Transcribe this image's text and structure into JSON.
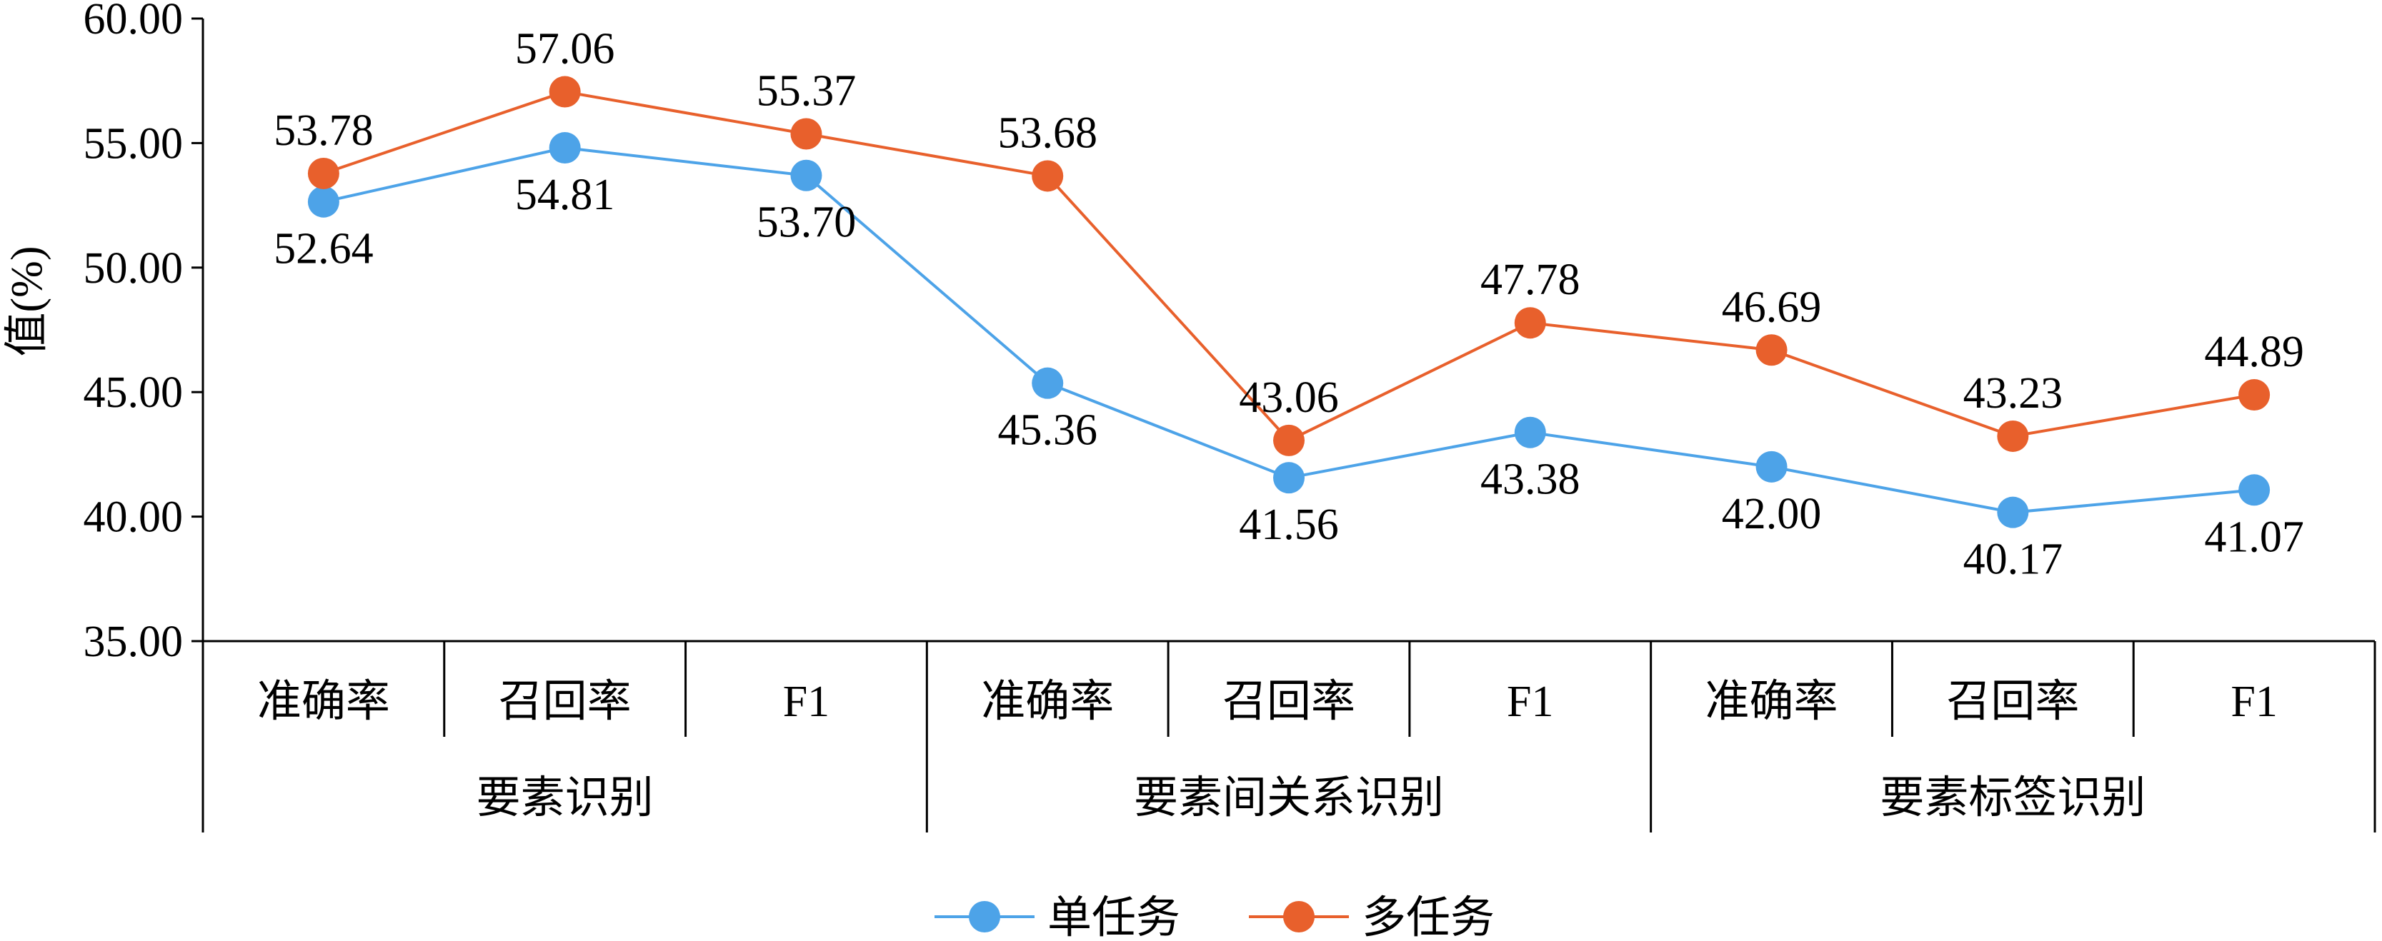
{
  "chart_data": {
    "type": "line",
    "title": "",
    "ylabel": "值(%)",
    "xlabel": "",
    "ylim": [
      35,
      60
    ],
    "yticks": [
      "35.00",
      "40.00",
      "45.00",
      "50.00",
      "55.00",
      "60.00"
    ],
    "grid": false,
    "legend_position": "bottom",
    "groups": [
      {
        "label": "要素识别",
        "categories": [
          "准确率",
          "召回率",
          "F1"
        ]
      },
      {
        "label": "要素间关系识别",
        "categories": [
          "准确率",
          "召回率",
          "F1"
        ]
      },
      {
        "label": "要素标签识别",
        "categories": [
          "准确率",
          "召回率",
          "F1"
        ]
      }
    ],
    "series": [
      {
        "name": "单任务",
        "color": "#4DA3E8",
        "values": [
          52.64,
          54.81,
          53.7,
          45.36,
          41.56,
          43.38,
          42.0,
          40.17,
          41.07
        ],
        "labels": [
          "52.64",
          "54.81",
          "53.70",
          "45.36",
          "41.56",
          "43.38",
          "42.00",
          "40.17",
          "41.07"
        ]
      },
      {
        "name": "多任务",
        "color": "#E8602C",
        "values": [
          53.78,
          57.06,
          55.37,
          53.68,
          43.06,
          47.78,
          46.69,
          43.23,
          44.89
        ],
        "labels": [
          "53.78",
          "57.06",
          "55.37",
          "53.68",
          "43.06",
          "47.78",
          "46.69",
          "43.23",
          "44.89"
        ]
      }
    ]
  }
}
